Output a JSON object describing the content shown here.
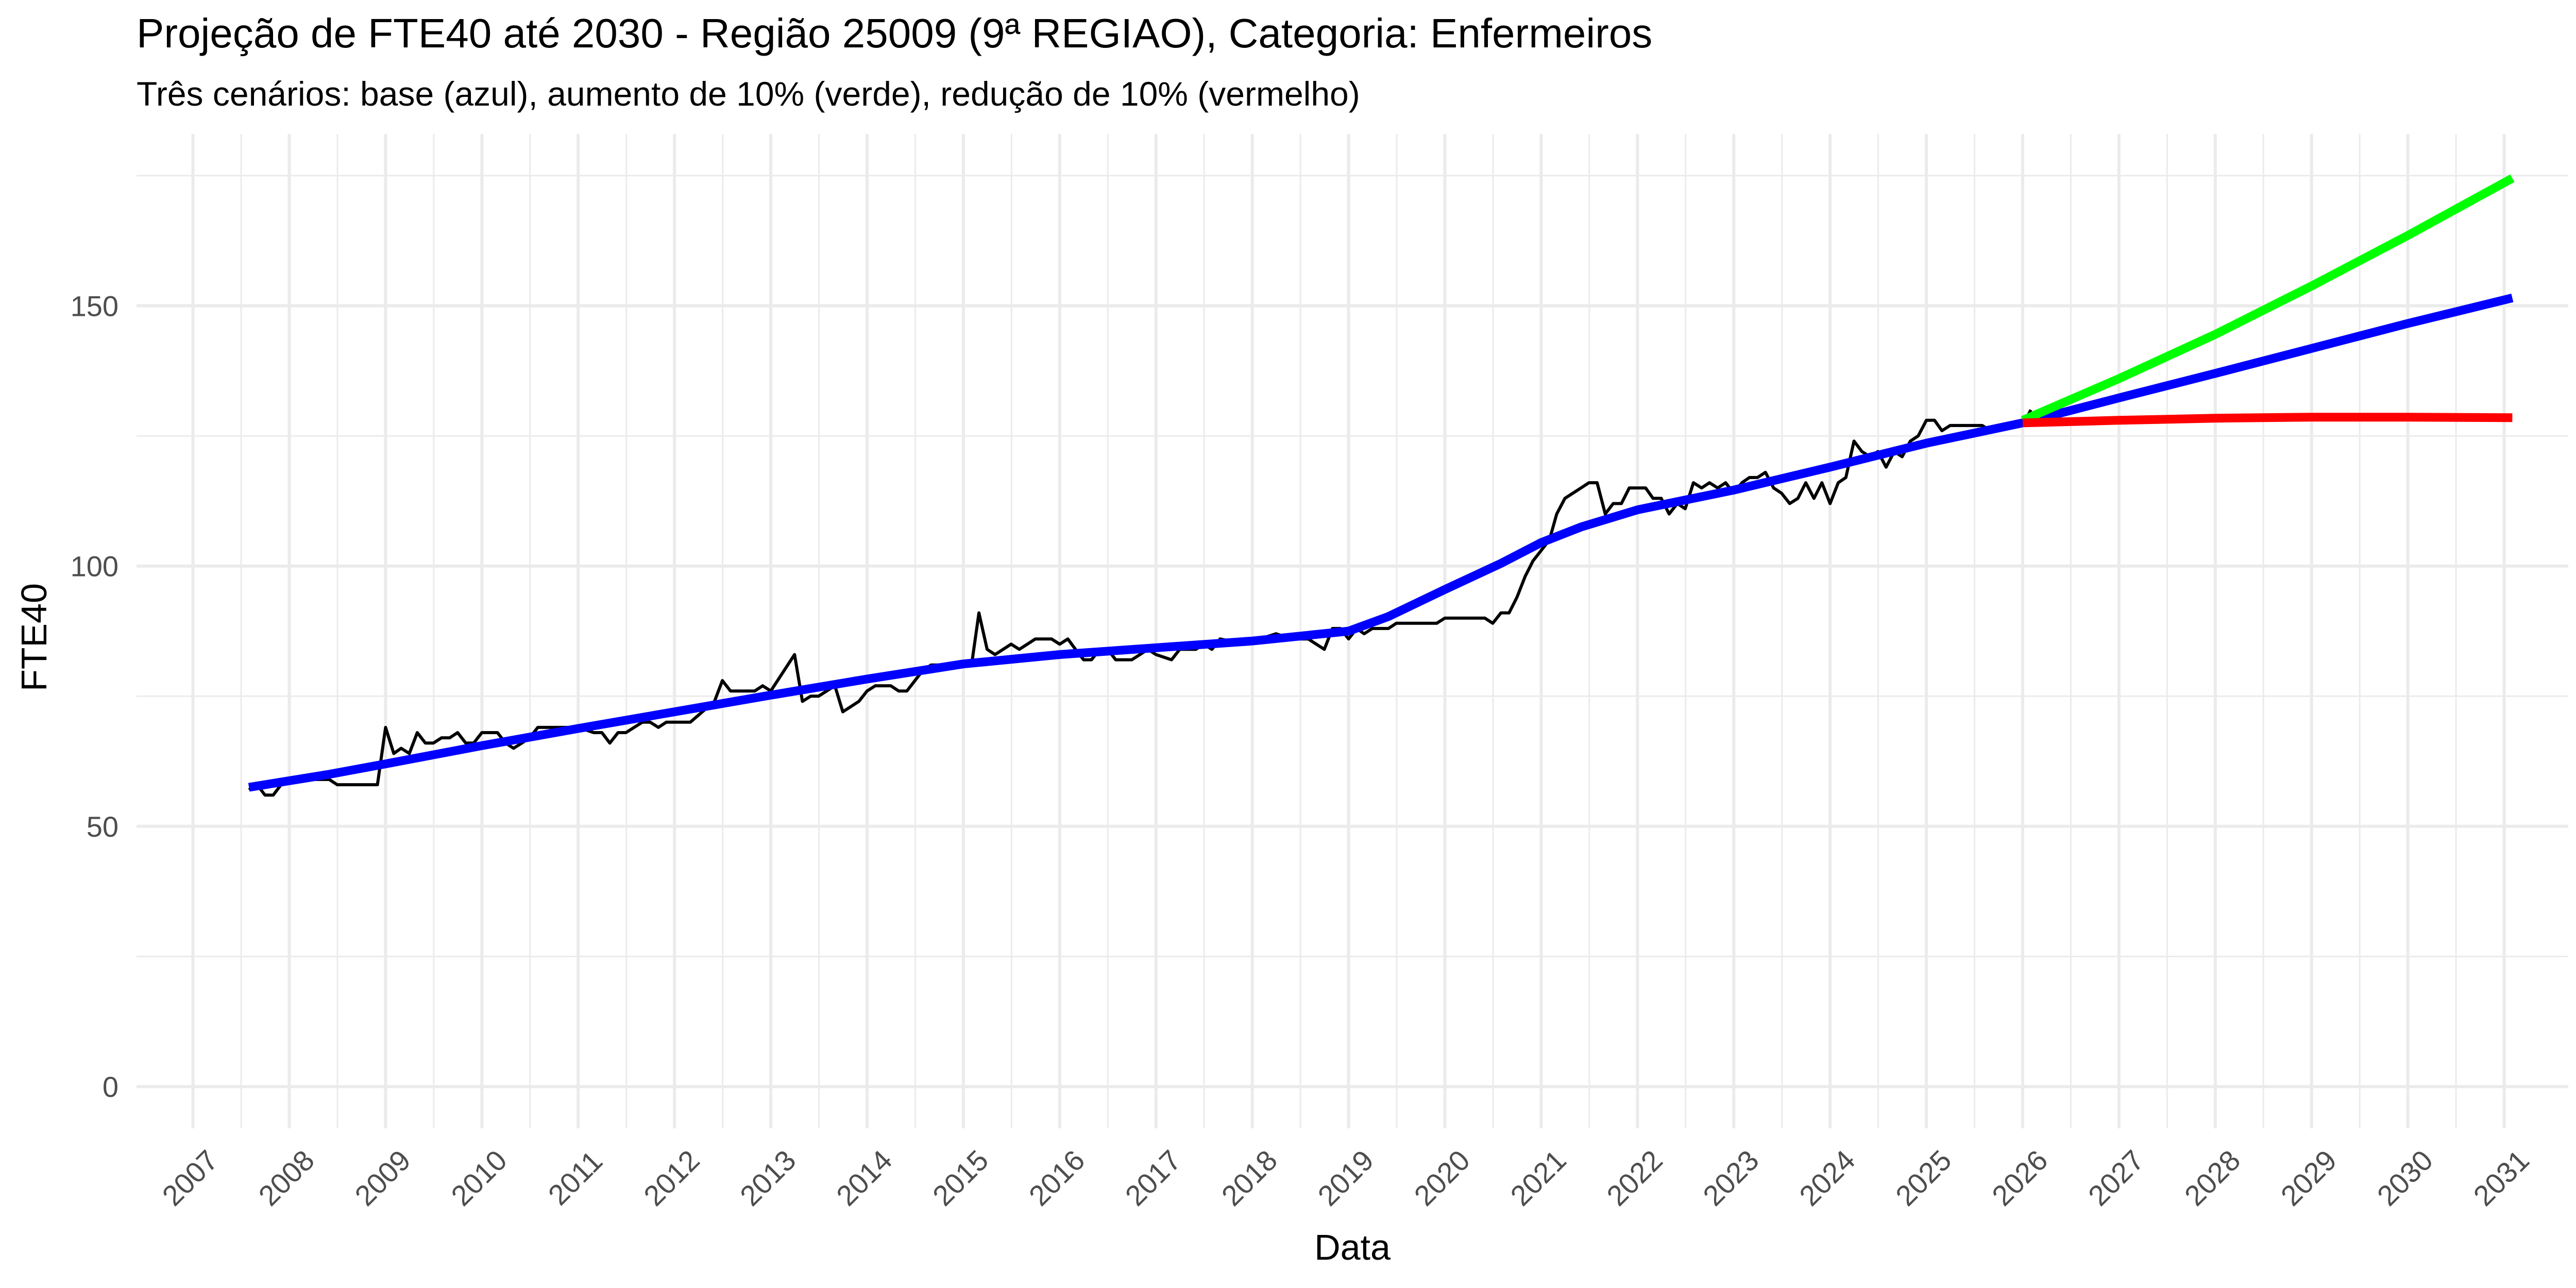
{
  "chart_data": {
    "type": "line",
    "title": "Projeção de FTE40 até 2030 - Região 25009 (9ª REGIAO), Categoria: Enfermeiros",
    "subtitle": "Três cenários: base (azul), aumento de 10% (verde), redução de 10% (vermelho)",
    "xlabel": "Data",
    "ylabel": "FTE40",
    "xlim": [
      "2006-06-01",
      "2031-09-01"
    ],
    "ylim": [
      -8,
      183
    ],
    "x_ticks": [
      "2007",
      "2008",
      "2009",
      "2010",
      "2011",
      "2012",
      "2013",
      "2014",
      "2015",
      "2016",
      "2017",
      "2018",
      "2019",
      "2020",
      "2021",
      "2022",
      "2023",
      "2024",
      "2025",
      "2026",
      "2027",
      "2028",
      "2029",
      "2030",
      "2031"
    ],
    "y_ticks": [
      0,
      50,
      100,
      150
    ],
    "grid": true,
    "legend": "none",
    "series": [
      {
        "color": "#000000",
        "points": [
          [
            "2007-08-01",
            57
          ],
          [
            "2007-09-01",
            58
          ],
          [
            "2007-10-01",
            56
          ],
          [
            "2007-11-01",
            56
          ],
          [
            "2007-12-01",
            58
          ],
          [
            "2008-01-01",
            59
          ],
          [
            "2008-03-01",
            59
          ],
          [
            "2008-06-01",
            59
          ],
          [
            "2008-07-01",
            58
          ],
          [
            "2008-12-01",
            58
          ],
          [
            "2009-01-01",
            69
          ],
          [
            "2009-02-01",
            64
          ],
          [
            "2009-03-01",
            65
          ],
          [
            "2009-04-01",
            64
          ],
          [
            "2009-05-01",
            68
          ],
          [
            "2009-06-01",
            66
          ],
          [
            "2009-07-01",
            66
          ],
          [
            "2009-08-01",
            67
          ],
          [
            "2009-09-01",
            67
          ],
          [
            "2009-10-01",
            68
          ],
          [
            "2009-11-01",
            66
          ],
          [
            "2009-12-01",
            66
          ],
          [
            "2010-01-01",
            68
          ],
          [
            "2010-03-01",
            68
          ],
          [
            "2010-04-01",
            66
          ],
          [
            "2010-05-01",
            65
          ],
          [
            "2010-06-01",
            66
          ],
          [
            "2010-07-01",
            67
          ],
          [
            "2010-08-01",
            69
          ],
          [
            "2010-10-01",
            69
          ],
          [
            "2011-01-01",
            69
          ],
          [
            "2011-03-01",
            68
          ],
          [
            "2011-04-01",
            68
          ],
          [
            "2011-05-01",
            66
          ],
          [
            "2011-06-01",
            68
          ],
          [
            "2011-07-01",
            68
          ],
          [
            "2011-09-01",
            70
          ],
          [
            "2011-10-01",
            70
          ],
          [
            "2011-11-01",
            69
          ],
          [
            "2011-12-01",
            70
          ],
          [
            "2012-03-01",
            70
          ],
          [
            "2012-06-01",
            74
          ],
          [
            "2012-07-01",
            78
          ],
          [
            "2012-08-01",
            76
          ],
          [
            "2012-10-01",
            76
          ],
          [
            "2012-11-01",
            76
          ],
          [
            "2012-12-01",
            77
          ],
          [
            "2013-01-01",
            76
          ],
          [
            "2013-04-01",
            83
          ],
          [
            "2013-05-01",
            74
          ],
          [
            "2013-06-01",
            75
          ],
          [
            "2013-07-01",
            75
          ],
          [
            "2013-08-01",
            76
          ],
          [
            "2013-09-01",
            77
          ],
          [
            "2013-10-01",
            72
          ],
          [
            "2013-12-01",
            74
          ],
          [
            "2014-01-01",
            76
          ],
          [
            "2014-02-01",
            77
          ],
          [
            "2014-04-01",
            77
          ],
          [
            "2014-05-01",
            76
          ],
          [
            "2014-06-01",
            76
          ],
          [
            "2014-08-01",
            80
          ],
          [
            "2014-09-01",
            81
          ],
          [
            "2014-12-01",
            81
          ],
          [
            "2015-02-01",
            81
          ],
          [
            "2015-03-01",
            91
          ],
          [
            "2015-04-01",
            84
          ],
          [
            "2015-05-01",
            83
          ],
          [
            "2015-07-01",
            85
          ],
          [
            "2015-08-01",
            84
          ],
          [
            "2015-10-01",
            86
          ],
          [
            "2015-12-01",
            86
          ],
          [
            "2016-01-01",
            85
          ],
          [
            "2016-02-01",
            86
          ],
          [
            "2016-03-01",
            84
          ],
          [
            "2016-04-01",
            82
          ],
          [
            "2016-05-01",
            82
          ],
          [
            "2016-06-01",
            84
          ],
          [
            "2016-07-01",
            84
          ],
          [
            "2016-08-01",
            82
          ],
          [
            "2016-10-01",
            82
          ],
          [
            "2016-11-01",
            83
          ],
          [
            "2016-12-01",
            84
          ],
          [
            "2017-01-01",
            83
          ],
          [
            "2017-03-01",
            82
          ],
          [
            "2017-04-01",
            84
          ],
          [
            "2017-06-01",
            84
          ],
          [
            "2017-07-01",
            85
          ],
          [
            "2017-08-01",
            84
          ],
          [
            "2017-09-01",
            86
          ],
          [
            "2017-12-01",
            85
          ],
          [
            "2018-04-01",
            87
          ],
          [
            "2018-06-01",
            86
          ],
          [
            "2018-08-01",
            86
          ],
          [
            "2018-10-01",
            84
          ],
          [
            "2018-11-01",
            88
          ],
          [
            "2018-12-01",
            88
          ],
          [
            "2019-01-01",
            86
          ],
          [
            "2019-02-01",
            88
          ],
          [
            "2019-03-01",
            87
          ],
          [
            "2019-04-01",
            88
          ],
          [
            "2019-06-01",
            88
          ],
          [
            "2019-07-01",
            89
          ],
          [
            "2019-12-01",
            89
          ],
          [
            "2020-01-01",
            90
          ],
          [
            "2020-06-01",
            90
          ],
          [
            "2020-07-01",
            89
          ],
          [
            "2020-08-01",
            91
          ],
          [
            "2020-09-01",
            91
          ],
          [
            "2020-10-01",
            94
          ],
          [
            "2020-11-01",
            98
          ],
          [
            "2020-12-01",
            101
          ],
          [
            "2021-02-01",
            105
          ],
          [
            "2021-03-01",
            110
          ],
          [
            "2021-04-01",
            113
          ],
          [
            "2021-06-01",
            115
          ],
          [
            "2021-07-01",
            116
          ],
          [
            "2021-08-01",
            116
          ],
          [
            "2021-09-01",
            110
          ],
          [
            "2021-10-01",
            112
          ],
          [
            "2021-11-01",
            112
          ],
          [
            "2021-12-01",
            115
          ],
          [
            "2022-02-01",
            115
          ],
          [
            "2022-03-01",
            113
          ],
          [
            "2022-04-01",
            113
          ],
          [
            "2022-05-01",
            110
          ],
          [
            "2022-06-01",
            112
          ],
          [
            "2022-07-01",
            111
          ],
          [
            "2022-08-01",
            116
          ],
          [
            "2022-09-01",
            115
          ],
          [
            "2022-10-01",
            116
          ],
          [
            "2022-11-01",
            115
          ],
          [
            "2022-12-01",
            116
          ],
          [
            "2023-01-01",
            114
          ],
          [
            "2023-02-01",
            116
          ],
          [
            "2023-03-01",
            117
          ],
          [
            "2023-04-01",
            117
          ],
          [
            "2023-05-01",
            118
          ],
          [
            "2023-06-01",
            115
          ],
          [
            "2023-07-01",
            114
          ],
          [
            "2023-08-01",
            112
          ],
          [
            "2023-09-01",
            113
          ],
          [
            "2023-10-01",
            116
          ],
          [
            "2023-11-01",
            113
          ],
          [
            "2023-12-01",
            116
          ],
          [
            "2024-01-01",
            112
          ],
          [
            "2024-02-01",
            116
          ],
          [
            "2024-03-01",
            117
          ],
          [
            "2024-04-01",
            124
          ],
          [
            "2024-05-01",
            122
          ],
          [
            "2024-06-01",
            121
          ],
          [
            "2024-07-01",
            122
          ],
          [
            "2024-08-01",
            119
          ],
          [
            "2024-09-01",
            122
          ],
          [
            "2024-10-01",
            121
          ],
          [
            "2024-11-01",
            124
          ],
          [
            "2024-12-01",
            125
          ],
          [
            "2025-01-01",
            128
          ],
          [
            "2025-02-01",
            128
          ],
          [
            "2025-03-01",
            126
          ],
          [
            "2025-04-01",
            127
          ],
          [
            "2025-08-01",
            127
          ],
          [
            "2025-09-01",
            126
          ],
          [
            "2026-01-01",
            127
          ],
          [
            "2026-02-01",
            130
          ]
        ]
      },
      {
        "color": "#0000ff",
        "points": [
          [
            "2007-08-01",
            57.5
          ],
          [
            "2008-06-01",
            60
          ],
          [
            "2009-01-01",
            62
          ],
          [
            "2010-01-01",
            65.5
          ],
          [
            "2011-01-01",
            68.8
          ],
          [
            "2012-01-01",
            72
          ],
          [
            "2013-01-01",
            75.2
          ],
          [
            "2014-01-01",
            78.3
          ],
          [
            "2015-01-01",
            81.2
          ],
          [
            "2016-01-01",
            83
          ],
          [
            "2017-01-01",
            84.3
          ],
          [
            "2018-01-01",
            85.6
          ],
          [
            "2019-01-01",
            87.5
          ],
          [
            "2019-06-01",
            90.3
          ],
          [
            "2020-01-01",
            95.5
          ],
          [
            "2020-08-01",
            100.5
          ],
          [
            "2021-01-01",
            104.5
          ],
          [
            "2021-06-01",
            107.5
          ],
          [
            "2022-01-01",
            110.8
          ],
          [
            "2023-01-01",
            114.6
          ],
          [
            "2024-01-01",
            119
          ],
          [
            "2025-01-01",
            123.6
          ],
          [
            "2026-01-01",
            127.5
          ],
          [
            "2027-01-01",
            132.3
          ],
          [
            "2028-01-01",
            137
          ],
          [
            "2029-01-01",
            141.8
          ],
          [
            "2030-01-01",
            146.6
          ],
          [
            "2031-02-01",
            151.5
          ]
        ]
      },
      {
        "color": "#00ff00",
        "points": [
          [
            "2026-01-01",
            128
          ],
          [
            "2027-01-01",
            136
          ],
          [
            "2028-01-01",
            144.5
          ],
          [
            "2029-01-01",
            153.8
          ],
          [
            "2030-01-01",
            163.5
          ],
          [
            "2031-02-01",
            174.5
          ]
        ]
      },
      {
        "color": "#ff0000",
        "points": [
          [
            "2026-01-01",
            127.5
          ],
          [
            "2027-01-01",
            128
          ],
          [
            "2028-01-01",
            128.4
          ],
          [
            "2029-01-01",
            128.6
          ],
          [
            "2030-01-01",
            128.6
          ],
          [
            "2031-02-01",
            128.5
          ]
        ]
      }
    ]
  }
}
